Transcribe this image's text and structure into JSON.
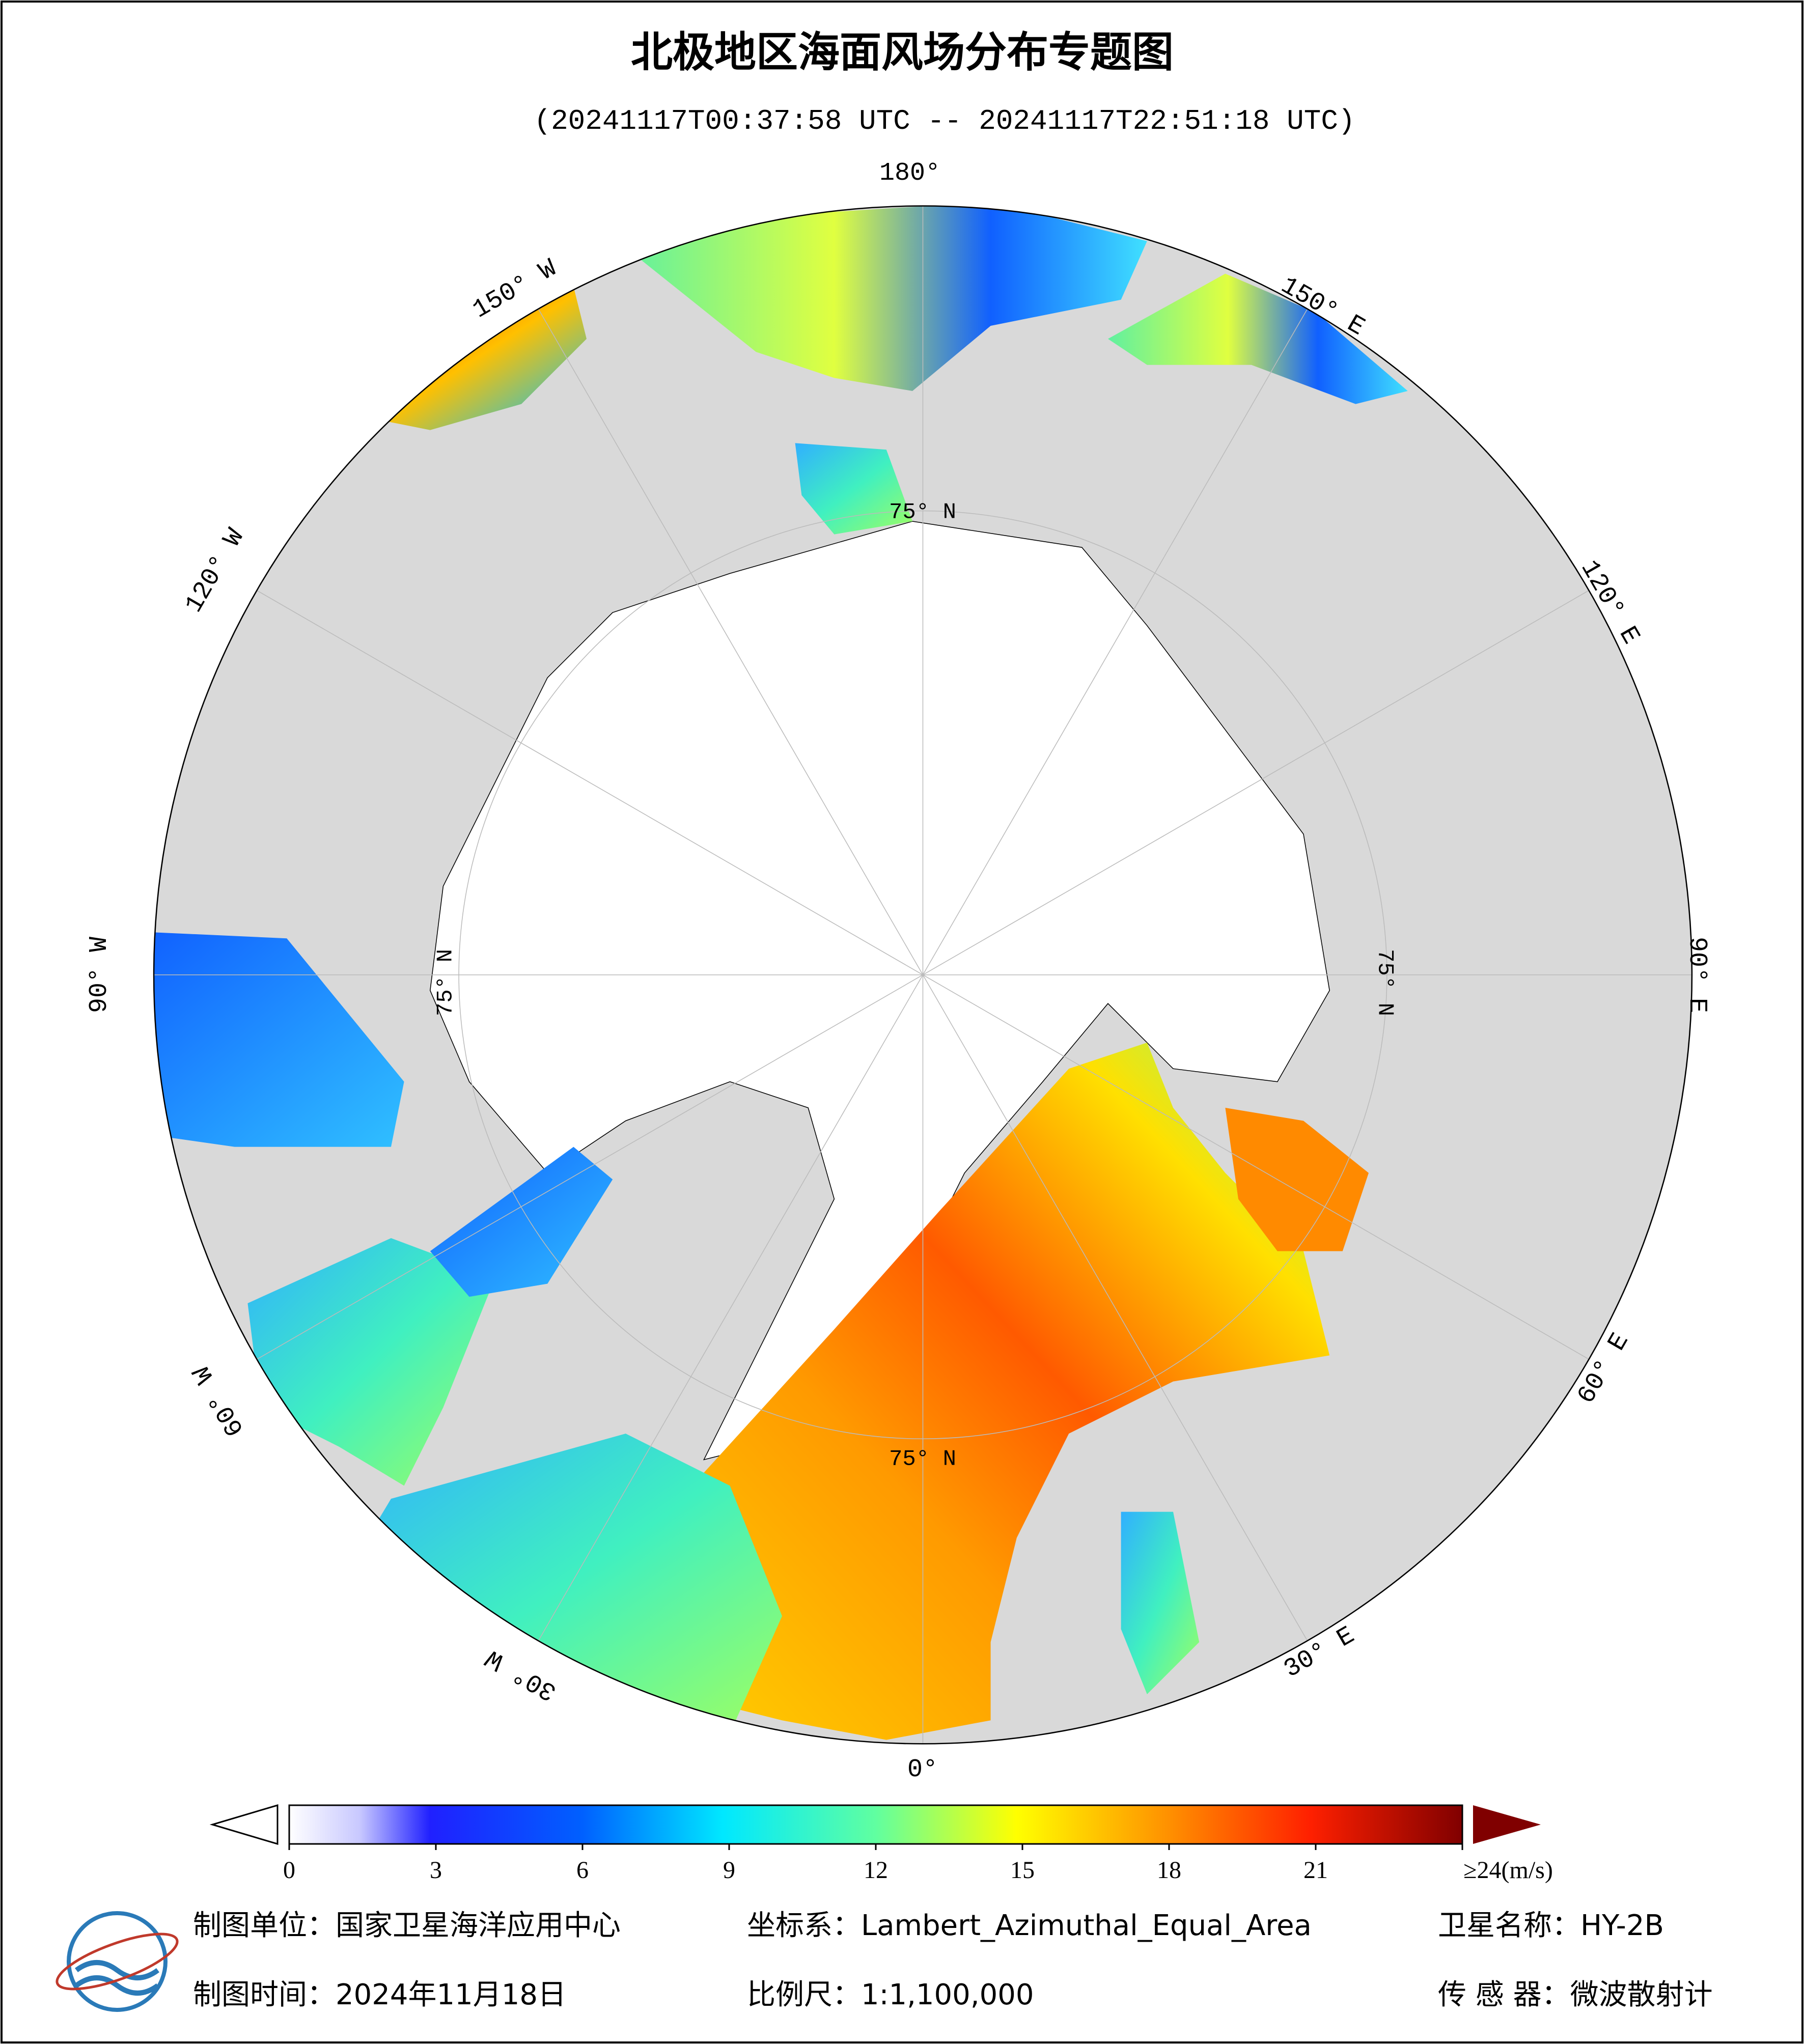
{
  "title": "北极地区海面风场分布专题图",
  "subtitle": "(20241117T00:37:58 UTC -- 20241117T22:51:18 UTC)",
  "longitude_labels": [
    "180°",
    "150° E",
    "120° E",
    "90° E",
    "60° E",
    "30° E",
    "0°",
    "30° W",
    "60° W",
    "90° W",
    "120° W",
    "150° W"
  ],
  "latitude_labels": [
    "75° N",
    "75° N",
    "75° N",
    "75° N"
  ],
  "colorbar": {
    "lim": [
      0,
      24
    ],
    "ticks": [
      0,
      3,
      6,
      9,
      12,
      15,
      18,
      21,
      {
        "value": 24,
        "label": "≥24(m/s)"
      }
    ]
  },
  "footer": {
    "unit": "制图单位：国家卫星海洋应用中心",
    "crs": "坐标系：Lambert_Azimuthal_Equal_Area",
    "satellite": "卫星名称：HY-2B",
    "date": "制图时间：2024年11月18日",
    "scale": "比例尺：1:1,100,000",
    "sensor": "传 感 器：微波散射计"
  }
}
